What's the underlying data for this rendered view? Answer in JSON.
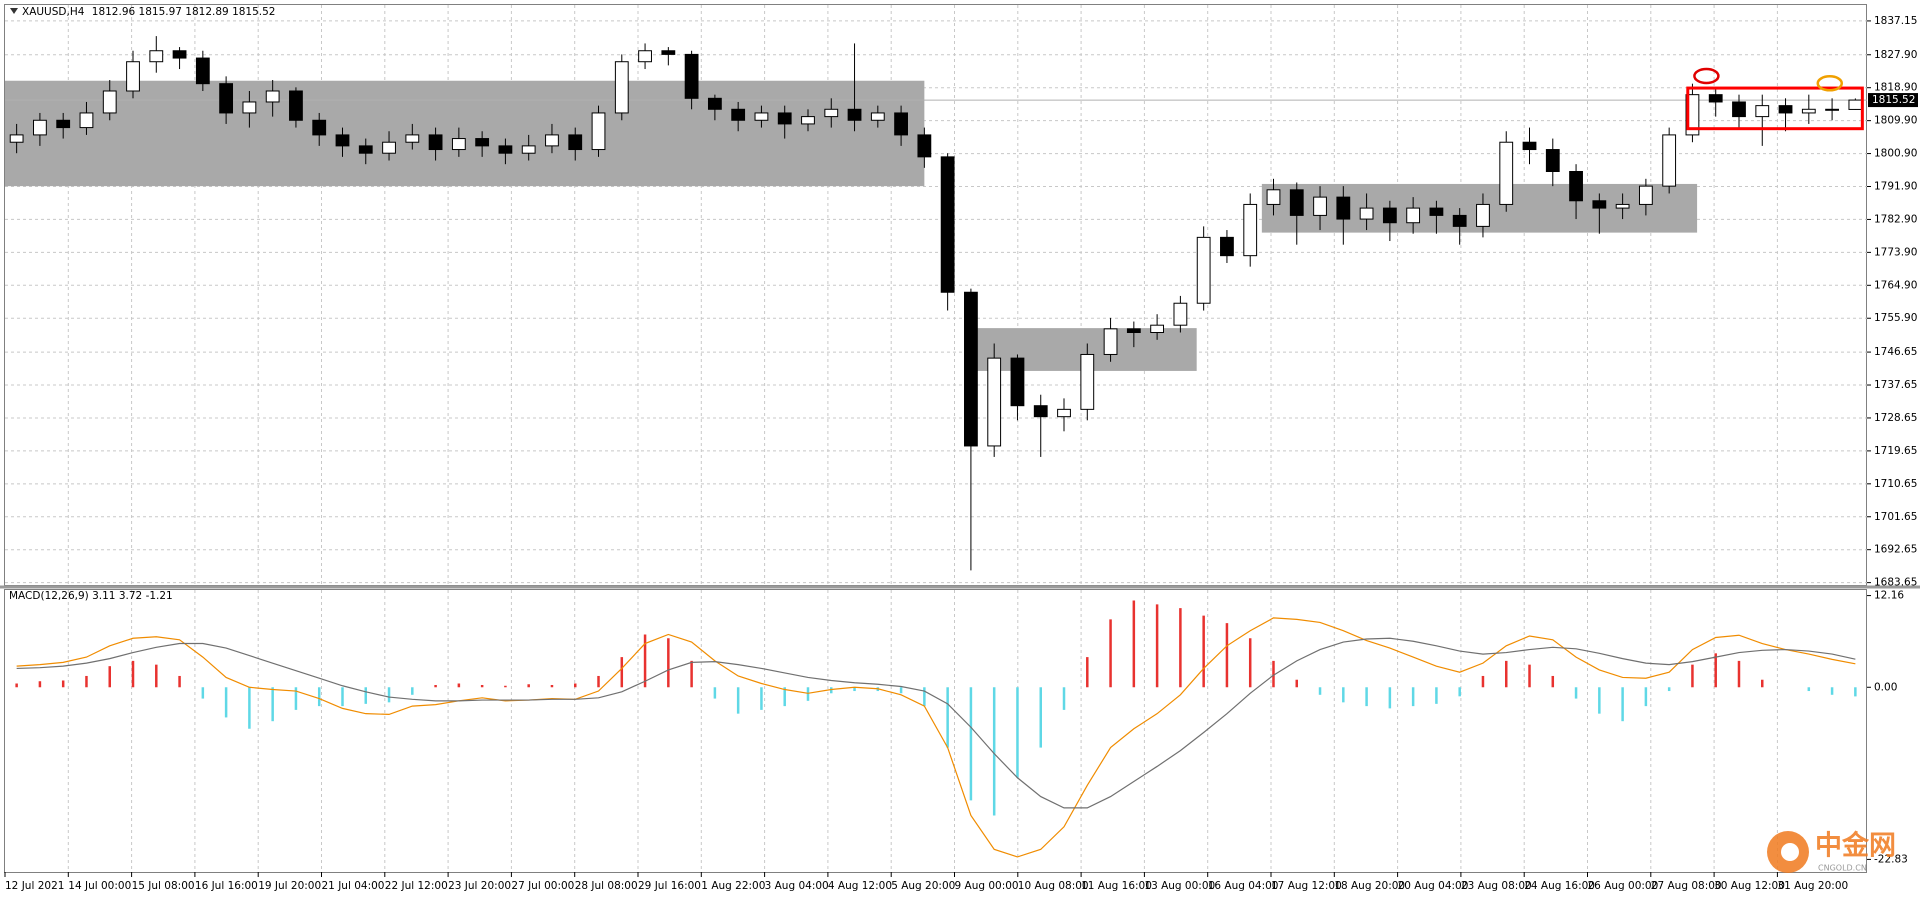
{
  "chart_data": [
    {
      "type": "candlestick",
      "symbol": "XAUUSD,H4",
      "open": [
        1804,
        1806,
        1810,
        1808,
        1812,
        1818,
        1826,
        1829,
        1827,
        1820,
        1812,
        1815,
        1818,
        1810,
        1806,
        1803,
        1801,
        1804,
        1806,
        1802,
        1805,
        1803,
        1801,
        1803,
        1806,
        1802,
        1812,
        1826,
        1829,
        1828,
        1816,
        1813,
        1810,
        1812,
        1809,
        1811,
        1813,
        1810,
        1812,
        1806,
        1800,
        1763,
        1721,
        1745,
        1732,
        1729,
        1731,
        1746,
        1753,
        1752,
        1754,
        1760,
        1778,
        1773,
        1787,
        1791,
        1784,
        1789,
        1783,
        1786,
        1782,
        1786,
        1784,
        1781,
        1787,
        1804,
        1802,
        1796,
        1788,
        1786,
        1787,
        1792,
        1806,
        1817,
        1815,
        1811,
        1814,
        1812,
        1813,
        1812.96
      ],
      "high": [
        1809,
        1812,
        1812,
        1815,
        1821,
        1829,
        1833,
        1830,
        1829,
        1822,
        1818,
        1821,
        1819,
        1812,
        1808,
        1805,
        1807,
        1809,
        1808,
        1808,
        1807,
        1805,
        1806,
        1809,
        1808,
        1814,
        1828,
        1831,
        1830,
        1829,
        1817,
        1815,
        1814,
        1814,
        1813,
        1816,
        1831,
        1814,
        1814,
        1808,
        1801,
        1764,
        1749,
        1746,
        1735,
        1734,
        1749,
        1756,
        1755,
        1757,
        1762,
        1781,
        1780,
        1790,
        1794,
        1793,
        1792,
        1792,
        1790,
        1788,
        1789,
        1788,
        1786,
        1790,
        1807,
        1808,
        1805,
        1798,
        1790,
        1790,
        1794,
        1808,
        1820,
        1819,
        1817,
        1817,
        1816,
        1817,
        1816,
        1815.97
      ],
      "low": [
        1801,
        1803,
        1805,
        1806,
        1810,
        1816,
        1823,
        1824,
        1818,
        1809,
        1808,
        1811,
        1808,
        1803,
        1800,
        1798,
        1799,
        1802,
        1799,
        1800,
        1800,
        1798,
        1799,
        1801,
        1799,
        1800,
        1810,
        1824,
        1825,
        1813,
        1810,
        1807,
        1808,
        1805,
        1807,
        1808,
        1807,
        1808,
        1803,
        1797,
        1758,
        1687,
        1718,
        1728,
        1718,
        1725,
        1728,
        1744,
        1748,
        1750,
        1752,
        1758,
        1771,
        1770,
        1784,
        1776,
        1780,
        1776,
        1780,
        1777,
        1779,
        1779,
        1776,
        1778,
        1785,
        1798,
        1792,
        1783,
        1779,
        1783,
        1784,
        1790,
        1804,
        1811,
        1808,
        1803,
        1807,
        1809,
        1810,
        1812.89
      ],
      "close": [
        1806,
        1810,
        1808,
        1812,
        1818,
        1826,
        1829,
        1827,
        1820,
        1812,
        1815,
        1818,
        1810,
        1806,
        1803,
        1801,
        1804,
        1806,
        1802,
        1805,
        1803,
        1801,
        1803,
        1806,
        1802,
        1812,
        1826,
        1829,
        1828,
        1816,
        1813,
        1810,
        1812,
        1809,
        1811,
        1813,
        1810,
        1812,
        1806,
        1800,
        1763,
        1721,
        1745,
        1732,
        1729,
        1731,
        1746,
        1753,
        1752,
        1754,
        1760,
        1778,
        1773,
        1787,
        1791,
        1784,
        1789,
        1783,
        1786,
        1782,
        1786,
        1784,
        1781,
        1787,
        1804,
        1802,
        1796,
        1788,
        1786,
        1787,
        1792,
        1806,
        1817,
        1815,
        1811,
        1814,
        1812,
        1813,
        1813,
        1815.52
      ],
      "x_labels": [
        "12 Jul 2021",
        "14 Jul 00:00",
        "15 Jul 08:00",
        "16 Jul 16:00",
        "19 Jul 20:00",
        "21 Jul 04:00",
        "22 Jul 12:00",
        "23 Jul 20:00",
        "27 Jul 00:00",
        "28 Jul 08:00",
        "29 Jul 16:00",
        "1 Aug 22:00",
        "3 Aug 04:00",
        "4 Aug 12:00",
        "5 Aug 20:00",
        "9 Aug 00:00",
        "10 Aug 08:00",
        "11 Aug 16:00",
        "13 Aug 00:00",
        "16 Aug 04:00",
        "17 Aug 12:00",
        "18 Aug 20:00",
        "20 Aug 04:00",
        "23 Aug 08:00",
        "24 Aug 16:00",
        "26 Aug 00:00",
        "27 Aug 08:00",
        "30 Aug 12:00",
        "31 Aug 20:00"
      ],
      "ylim": [
        1683,
        1841.5
      ],
      "yticks": [
        1837.15,
        {
          "value": 1827.9,
          "label": "1827.90"
        },
        {
          "value": 1818.9,
          "label": "1818.90"
        },
        {
          "value": 1809.9,
          "label": "1809.90"
        },
        {
          "value": 1800.9,
          "label": "1800.90"
        },
        {
          "value": 1791.9,
          "label": "1791.90"
        },
        {
          "value": 1782.9,
          "label": "1782.90"
        },
        {
          "value": 1773.9,
          "label": "1773.90"
        },
        {
          "value": 1764.9,
          "label": "1764.90"
        },
        {
          "value": 1755.9,
          "label": "1755.90"
        },
        1746.65,
        1737.65,
        1728.65,
        1719.65,
        1710.65,
        1701.65,
        1692.65,
        1683.65
      ],
      "grid": true,
      "zones": [
        {
          "x": [
            0,
            39.5
          ],
          "y": [
            1792,
            1820.8
          ],
          "color": "#a9a9a9"
        },
        {
          "x": [
            41.4,
            51.2
          ],
          "y": [
            1741.5,
            1753.2
          ],
          "color": "#a9a9a9"
        },
        {
          "x": [
            54,
            72.7
          ],
          "y": [
            1779.3,
            1792.6
          ],
          "color": "#a9a9a9"
        }
      ],
      "boxes": [
        {
          "x": [
            72.3,
            79.8
          ],
          "y": [
            1807.7,
            1818.8
          ],
          "color": "#ff0000"
        }
      ],
      "markers": [
        {
          "x": 72.6,
          "y": 1822.1,
          "color": "#e00000"
        },
        {
          "x": 77.9,
          "y": 1820.1,
          "color": "#f0a000"
        }
      ]
    },
    {
      "type": "macd",
      "label": "MACD(12,26,9)",
      "ylim": [
        -24.5,
        12.9
      ],
      "yticks": [
        12.16,
        {
          "value": 0,
          "label": "0.00"
        },
        -22.83
      ],
      "series": [
        {
          "type": "line",
          "color": "#f08c00",
          "values": [
            2.8,
            3.0,
            3.3,
            4.0,
            5.5,
            6.5,
            6.7,
            6.3,
            4.0,
            1.3,
            0.0,
            -0.3,
            -0.5,
            -1.5,
            -2.8,
            -3.5,
            -3.6,
            -2.5,
            -2.3,
            -1.8,
            -1.4,
            -1.8,
            -1.7,
            -1.5,
            -1.6,
            -0.5,
            2.5,
            5.8,
            7.0,
            6.0,
            3.5,
            1.5,
            0.5,
            -0.3,
            -0.8,
            -0.3,
            0.0,
            -0.2,
            -1.0,
            -2.5,
            -8,
            -17,
            -21.5,
            -22.5,
            -21.5,
            -18.5,
            -13,
            -8,
            -5.5,
            -3.5,
            -1,
            2.5,
            5.5,
            7.5,
            9.2,
            9.0,
            8.6,
            7.5,
            6.2,
            5.2,
            4.0,
            2.8,
            2.0,
            3.2,
            5.5,
            6.8,
            6.3,
            4.0,
            2.3,
            1.3,
            1.2,
            2.0,
            5.0,
            6.6,
            6.9,
            5.8,
            5.0,
            4.4,
            3.7,
            3.11
          ]
        },
        {
          "type": "line",
          "color": "#707070",
          "values": [
            2.5,
            2.6,
            2.8,
            3.2,
            3.8,
            4.6,
            5.3,
            5.8,
            5.8,
            5.2,
            4.2,
            3.2,
            2.2,
            1.2,
            0.2,
            -0.6,
            -1.3,
            -1.6,
            -1.8,
            -1.8,
            -1.7,
            -1.7,
            -1.7,
            -1.6,
            -1.6,
            -1.4,
            -0.6,
            0.8,
            2.3,
            3.3,
            3.4,
            3.0,
            2.5,
            1.9,
            1.3,
            0.9,
            0.6,
            0.4,
            0.1,
            -0.5,
            -2.2,
            -5.3,
            -8.8,
            -12,
            -14.5,
            -16,
            -16,
            -14.5,
            -12.5,
            -10.5,
            -8.4,
            -6.0,
            -3.5,
            -0.8,
            1.6,
            3.5,
            5.0,
            6.0,
            6.4,
            6.5,
            6.1,
            5.5,
            4.8,
            4.4,
            4.6,
            5.0,
            5.3,
            5.1,
            4.5,
            3.8,
            3.2,
            3.0,
            3.4,
            4.0,
            4.6,
            4.9,
            5.0,
            4.8,
            4.4,
            3.72
          ]
        },
        {
          "type": "bar",
          "color": "#e8322f",
          "negative_color": "#5fd8e6",
          "values": [
            0.5,
            0.8,
            0.9,
            1.5,
            2.8,
            3.5,
            3.0,
            1.5,
            -1.5,
            -4.0,
            -5.5,
            -4.5,
            -3.0,
            -2.5,
            -2.5,
            -2.2,
            -2.0,
            -1.0,
            0.3,
            0.5,
            0.3,
            0.2,
            0.4,
            0.3,
            0.5,
            1.5,
            4.0,
            7.0,
            6.5,
            3.5,
            -1.5,
            -3.5,
            -3.0,
            -2.5,
            -1.8,
            -0.8,
            -0.5,
            -0.5,
            -0.8,
            -2.5,
            -8,
            -15,
            -17,
            -12,
            -8,
            -3,
            4,
            9,
            11.5,
            11.0,
            10.5,
            9.5,
            8.5,
            6.5,
            3.5,
            1.0,
            -1.0,
            -2.0,
            -2.5,
            -2.8,
            -2.5,
            -2.2,
            -1.2,
            1.5,
            3.5,
            3.0,
            1.5,
            -1.5,
            -3.5,
            -4.5,
            -2.5,
            -0.5,
            3.0,
            4.5,
            3.5,
            1.0,
            0.0,
            -0.5,
            -1.0,
            -1.21
          ]
        }
      ]
    }
  ],
  "watermark": {
    "name": "中金网",
    "site": "CNGOLD.CN"
  }
}
